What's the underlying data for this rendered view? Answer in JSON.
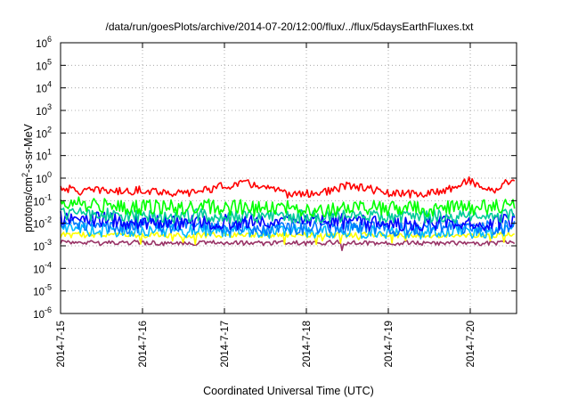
{
  "chart_data": {
    "type": "line",
    "title": "/data/run/goesPlots/archive/2014-07-20/12:00/flux/../flux/5daysEarthFluxes.txt",
    "xlabel": "Coordinated Universal Time (UTC)",
    "ylabel": "protons/cm2-s-sr-MeV",
    "yscale": "log",
    "ylim": [
      1e-06,
      1000000.0
    ],
    "xlim": [
      "2014-07-15",
      "2014-07-20 13:00"
    ],
    "x_ticks": [
      "2014-7-15",
      "2014-7-16",
      "2014-7-17",
      "2014-7-18",
      "2014-7-19",
      "2014-7-20"
    ],
    "y_ticks": [
      {
        "mantissa": "10",
        "exponent": "-6"
      },
      {
        "mantissa": "10",
        "exponent": "-5"
      },
      {
        "mantissa": "10",
        "exponent": "-4"
      },
      {
        "mantissa": "10",
        "exponent": "-3"
      },
      {
        "mantissa": "10",
        "exponent": "-2"
      },
      {
        "mantissa": "10",
        "exponent": "-1"
      },
      {
        "mantissa": "10",
        "exponent": "0"
      },
      {
        "mantissa": "10",
        "exponent": "1"
      },
      {
        "mantissa": "10",
        "exponent": "2"
      },
      {
        "mantissa": "10",
        "exponent": "3"
      },
      {
        "mantissa": "10",
        "exponent": "4"
      },
      {
        "mantissa": "10",
        "exponent": "5"
      },
      {
        "mantissa": "10",
        "exponent": "6"
      }
    ],
    "grid": true,
    "x_days": [
      0,
      0.25,
      0.5,
      0.75,
      1.0,
      1.25,
      1.5,
      1.75,
      2.0,
      2.25,
      2.5,
      2.75,
      3.0,
      3.25,
      3.5,
      3.75,
      4.0,
      4.25,
      4.5,
      4.75,
      5.0,
      5.25,
      5.54
    ],
    "series": [
      {
        "color": "#ff0000",
        "values": [
          0.4,
          0.25,
          0.3,
          0.25,
          0.3,
          0.25,
          0.2,
          0.3,
          0.45,
          0.6,
          0.4,
          0.2,
          0.2,
          0.25,
          0.45,
          0.35,
          0.2,
          0.2,
          0.2,
          0.35,
          0.8,
          0.25,
          1.0
        ]
      },
      {
        "color": "#00ff00",
        "values": [
          0.08,
          0.07,
          0.06,
          0.05,
          0.05,
          0.05,
          0.05,
          0.06,
          0.05,
          0.05,
          0.04,
          0.05,
          0.04,
          0.04,
          0.05,
          0.05,
          0.04,
          0.05,
          0.04,
          0.05,
          0.05,
          0.05,
          0.06
        ]
      },
      {
        "color": "#00cc99",
        "values": [
          0.03,
          0.025,
          0.025,
          0.02,
          0.02,
          0.02,
          0.02,
          0.025,
          0.02,
          0.02,
          0.02,
          0.02,
          0.02,
          0.02,
          0.02,
          0.02,
          0.02,
          0.02,
          0.02,
          0.02,
          0.02,
          0.02,
          0.025
        ]
      },
      {
        "color": "#0000ff",
        "values": [
          0.02,
          0.015,
          0.015,
          0.012,
          0.012,
          0.012,
          0.011,
          0.012,
          0.012,
          0.011,
          0.01,
          0.011,
          0.01,
          0.012,
          0.012,
          0.01,
          0.011,
          0.01,
          0.01,
          0.012,
          0.011,
          0.01,
          0.014
        ]
      },
      {
        "color": "#0077ff",
        "values": [
          0.01,
          0.008,
          0.008,
          0.007,
          0.008,
          0.007,
          0.007,
          0.008,
          0.007,
          0.007,
          0.006,
          0.007,
          0.006,
          0.007,
          0.007,
          0.007,
          0.006,
          0.006,
          0.006,
          0.007,
          0.007,
          0.006,
          0.008
        ]
      },
      {
        "color": "#00bbff",
        "values": [
          0.006,
          0.005,
          0.005,
          0.005,
          0.005,
          0.005,
          0.004,
          0.005,
          0.005,
          0.004,
          0.004,
          0.005,
          0.004,
          0.004,
          0.005,
          0.004,
          0.004,
          0.004,
          0.004,
          0.005,
          0.004,
          0.004,
          0.005
        ]
      },
      {
        "color": "#ffff00",
        "values": [
          0.003,
          0.003,
          0.003,
          0.003,
          0.003,
          0.003,
          0.0028,
          0.003,
          0.003,
          0.003,
          0.0028,
          0.003,
          0.003,
          0.003,
          0.003,
          0.003,
          0.003,
          0.003,
          0.0028,
          0.003,
          0.003,
          0.003,
          0.003
        ]
      },
      {
        "color": "#993366",
        "values": [
          0.0015,
          0.0014,
          0.0013,
          0.0014,
          0.0014,
          0.0013,
          0.0012,
          0.0014,
          0.0014,
          0.0013,
          0.0013,
          0.0014,
          0.0013,
          0.0014,
          0.0014,
          0.0013,
          0.0013,
          0.0014,
          0.0013,
          0.0014,
          0.0013,
          0.0013,
          0.0014
        ]
      }
    ]
  }
}
